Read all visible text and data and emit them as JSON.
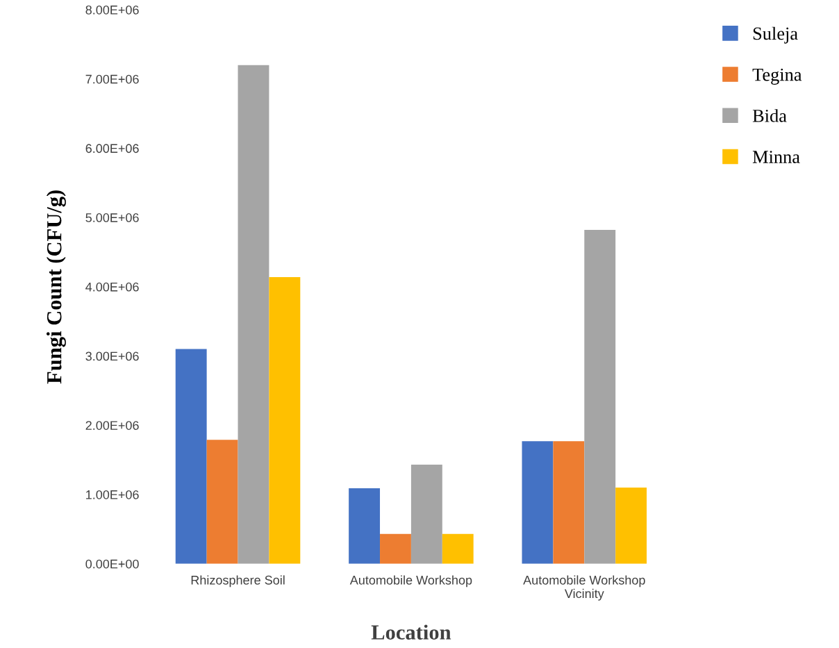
{
  "chart_data": {
    "type": "bar",
    "xlabel": "Location",
    "ylabel": "Fungi Count (CFU/g)",
    "categories": [
      "Rhizosphere Soil",
      "Automobile Workshop",
      "Automobile Workshop\nVicinity"
    ],
    "series": [
      {
        "name": "Suleja",
        "color": "#4472c4",
        "values": [
          3100000,
          1090000,
          1770000
        ]
      },
      {
        "name": "Tegina",
        "color": "#ed7d31",
        "values": [
          1790000,
          430000,
          1770000
        ]
      },
      {
        "name": "Bida",
        "color": "#a5a5a5",
        "values": [
          7200000,
          1430000,
          4820000
        ]
      },
      {
        "name": "Minna",
        "color": "#ffc000",
        "values": [
          4140000,
          430000,
          1100000
        ]
      }
    ],
    "ylim": [
      0,
      8000000
    ],
    "yticks": [
      {
        "value": 0,
        "label": "0.00E+00"
      },
      {
        "value": 1000000,
        "label": "1.00E+06"
      },
      {
        "value": 2000000,
        "label": "2.00E+06"
      },
      {
        "value": 3000000,
        "label": "3.00E+06"
      },
      {
        "value": 4000000,
        "label": "4.00E+06"
      },
      {
        "value": 5000000,
        "label": "5.00E+06"
      },
      {
        "value": 6000000,
        "label": "6.00E+06"
      },
      {
        "value": 7000000,
        "label": "7.00E+06"
      },
      {
        "value": 8000000,
        "label": "8.00E+06"
      }
    ],
    "grid": false,
    "legend": "top right"
  }
}
